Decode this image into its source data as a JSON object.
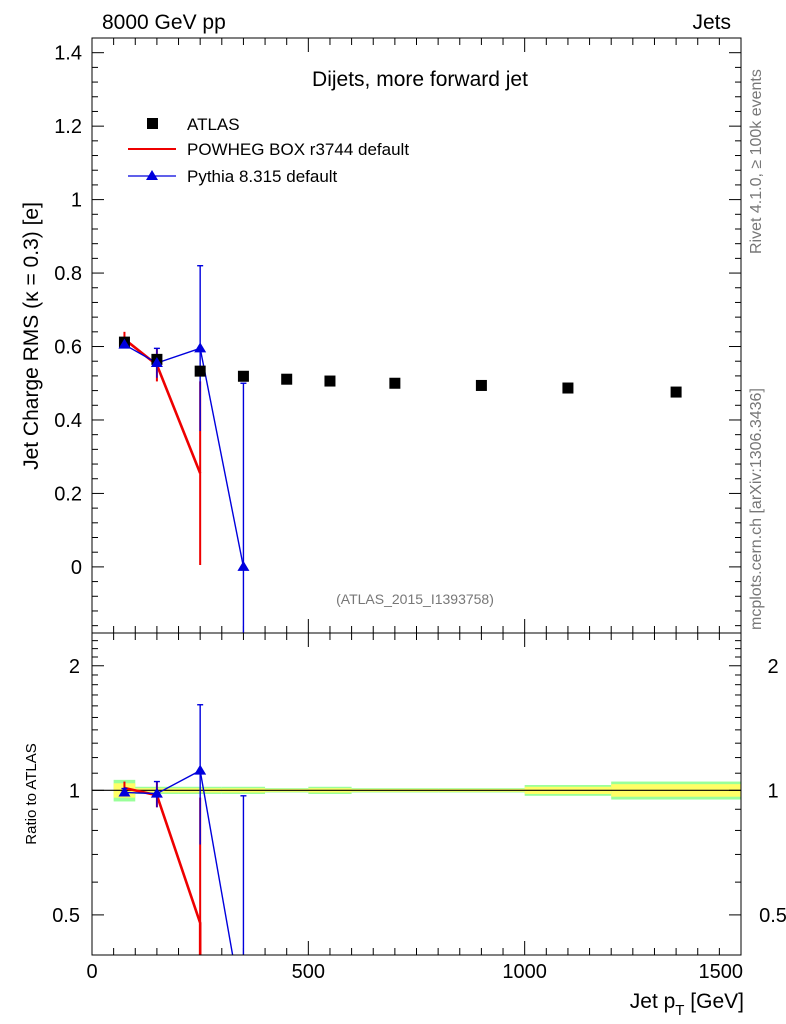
{
  "header": {
    "left": "8000 GeV pp",
    "right": "Jets"
  },
  "side": {
    "top": "Rivet 4.1.0, ≥ 100k events",
    "bottom": "mcplots.cern.ch [arXiv:1306.3436]"
  },
  "colors": {
    "atlas": "#000000",
    "powheg": "#ee0000",
    "pythia": "#0000dd",
    "band_inner": "#ffff66",
    "band_outer": "#99ff99"
  },
  "chart_data": [
    {
      "type": "scatter",
      "panel": "main",
      "title": "Dijets, more forward jet",
      "xlabel": "Jet p_T [GeV]",
      "ylabel": "Jet Charge RMS (κ = 0.3) [e]",
      "xlim": [
        0,
        1500
      ],
      "ylim": [
        -0.18,
        1.44
      ],
      "yticks": [
        0,
        0.2,
        0.4,
        0.6,
        0.8,
        1,
        1.2,
        1.4
      ],
      "yticklabels": [
        "0",
        "0.2",
        "0.4",
        "0.6",
        "0.8",
        "1",
        "1.2",
        "1.4"
      ],
      "watermark": "(ATLAS_2015_I1393758)",
      "legend_position": "top-left",
      "legend": [
        {
          "key": "atlas",
          "label": "ATLAS"
        },
        {
          "key": "powheg",
          "label": "POWHEG BOX r3744 default"
        },
        {
          "key": "pythia",
          "label": "Pythia 8.315 default"
        }
      ],
      "series": [
        {
          "name": "ATLAS",
          "key": "atlas",
          "style": "markers",
          "x": [
            75,
            150,
            250,
            350,
            450,
            550,
            700,
            900,
            1100,
            1350
          ],
          "xlo": [
            50,
            100,
            200,
            300,
            400,
            500,
            600,
            800,
            1000,
            1200
          ],
          "xhi": [
            100,
            200,
            300,
            400,
            500,
            600,
            800,
            1000,
            1200,
            1500
          ],
          "values": [
            0.612,
            0.565,
            0.533,
            0.519,
            0.511,
            0.506,
            0.5,
            0.494,
            0.487,
            0.476
          ]
        },
        {
          "name": "POWHEG BOX r3744 default",
          "key": "powheg",
          "style": "line",
          "x": [
            75,
            150,
            250
          ],
          "values": [
            0.62,
            0.55,
            0.255
          ],
          "err": [
            0.02,
            0.045,
            0.25
          ]
        },
        {
          "name": "Pythia 8.315 default",
          "key": "pythia",
          "style": "line-markers",
          "x": [
            75,
            150,
            250,
            350
          ],
          "values": [
            0.605,
            0.555,
            0.595,
            0.0
          ],
          "err": [
            0.01,
            0.04,
            0.225,
            0.5
          ]
        }
      ]
    },
    {
      "type": "scatter",
      "panel": "ratio",
      "ylabel": "Ratio to ATLAS",
      "xlabel": "Jet p_T [GeV]",
      "xlim": [
        0,
        1500
      ],
      "ylim": [
        0.4,
        2.4
      ],
      "scale": "log",
      "xticks": [
        0,
        500,
        1000,
        1500
      ],
      "xticklabels": [
        "0",
        "500",
        "1000",
        "1500"
      ],
      "yticks": [
        0.5,
        1,
        2
      ],
      "yticklabels": [
        "0.5",
        "1",
        "2"
      ],
      "reference": 1,
      "band": {
        "xlo": [
          50,
          100,
          200,
          300,
          400,
          500,
          600,
          800,
          1000,
          1200
        ],
        "xhi": [
          100,
          200,
          300,
          400,
          500,
          600,
          800,
          1000,
          1200,
          1500
        ],
        "inner": [
          0.04,
          0.012,
          0.012,
          0.012,
          0.008,
          0.012,
          0.008,
          0.008,
          0.02,
          0.035
        ],
        "outer": [
          0.06,
          0.02,
          0.02,
          0.02,
          0.012,
          0.02,
          0.012,
          0.012,
          0.03,
          0.05
        ]
      },
      "series": [
        {
          "name": "POWHEG BOX r3744 default",
          "key": "powheg",
          "x": [
            75,
            150,
            250
          ],
          "values": [
            1.013,
            0.973,
            0.478
          ],
          "lo": [
            0.98,
            0.91,
            0.3
          ],
          "hi": [
            1.05,
            1.05,
            0.96
          ]
        },
        {
          "name": "Pythia 8.315 default",
          "key": "pythia",
          "x": [
            75,
            150,
            250,
            350
          ],
          "values": [
            0.988,
            0.982,
            1.116,
            0.0
          ],
          "lo": [
            0.97,
            0.91,
            0.74,
            0.0
          ],
          "hi": [
            1.01,
            1.05,
            1.61,
            0.97
          ]
        }
      ]
    }
  ]
}
